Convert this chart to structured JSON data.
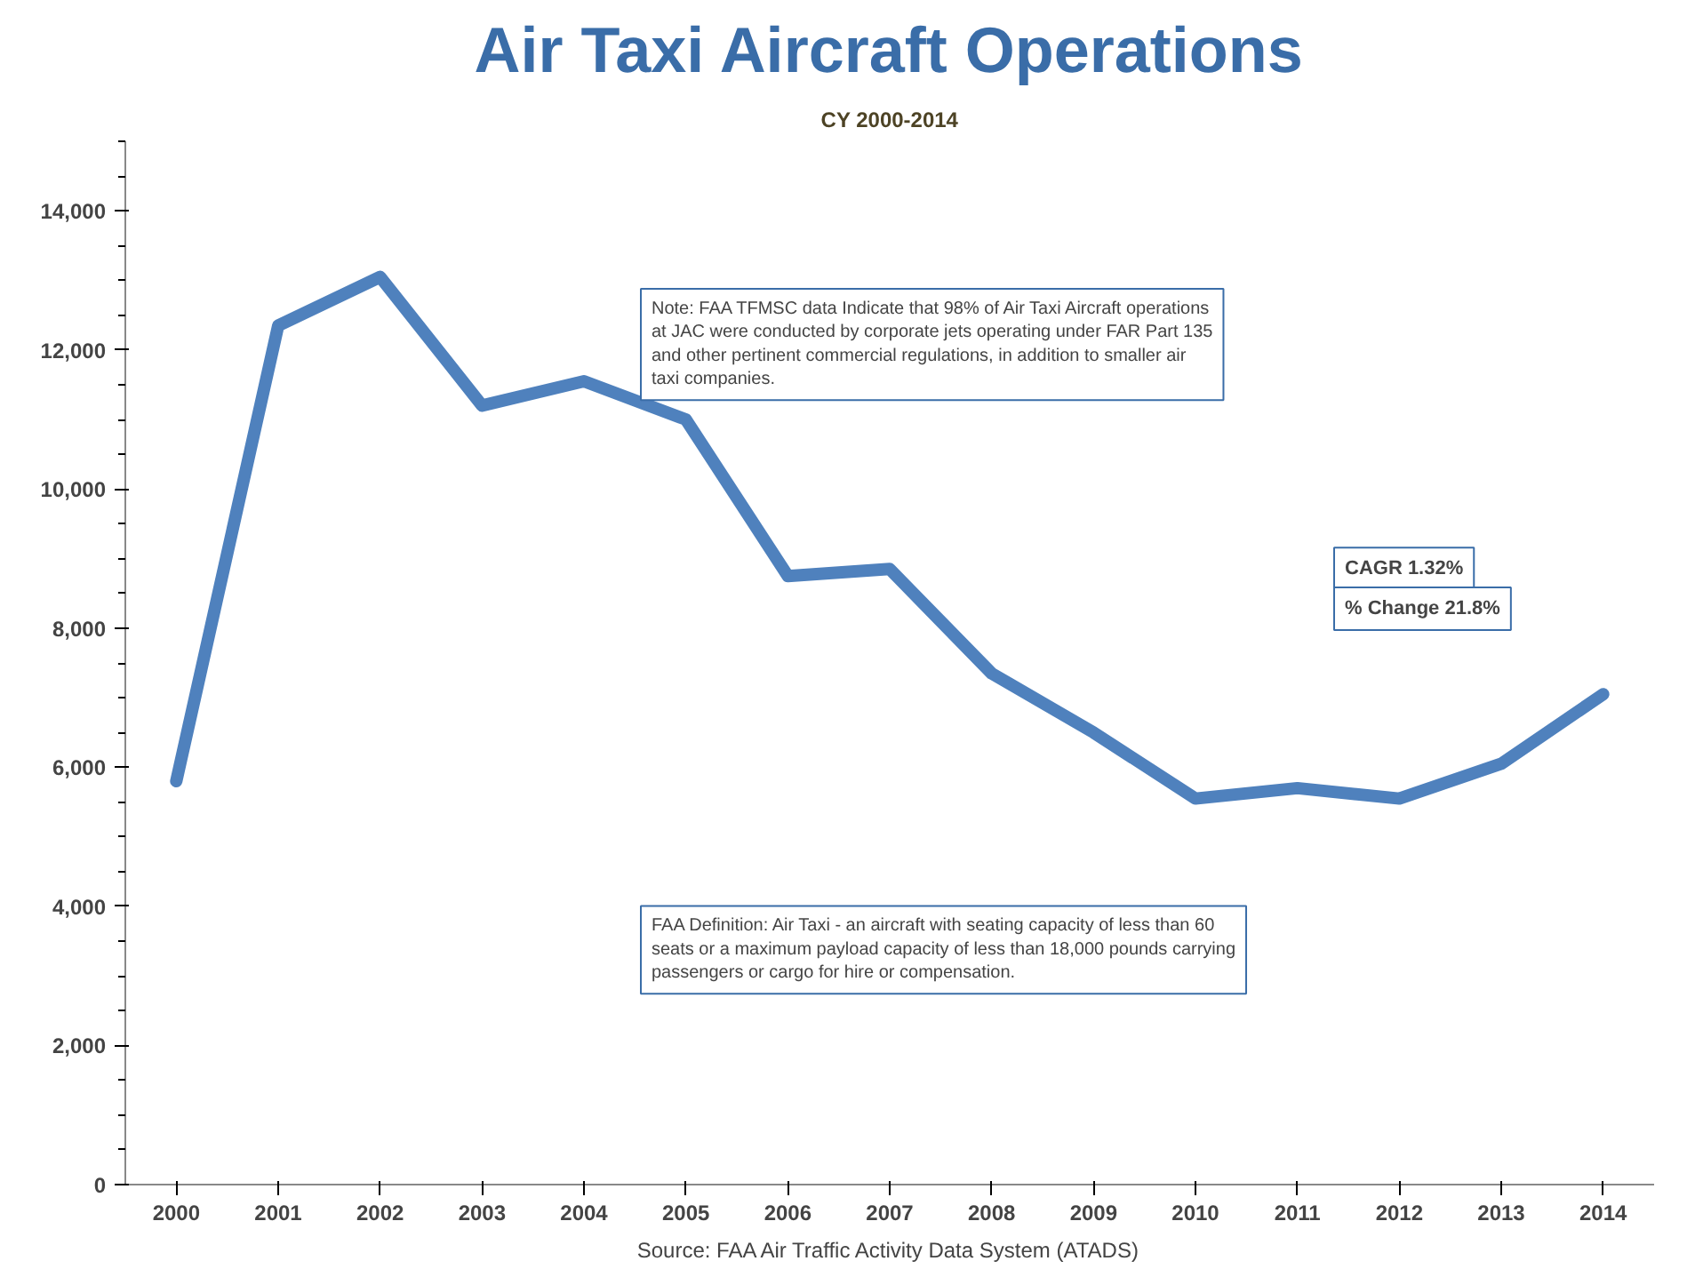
{
  "chart_data": {
    "type": "line",
    "title": "Air Taxi Aircraft Operations",
    "subtitle": "CY 2000-2014",
    "categories": [
      "2000",
      "2001",
      "2002",
      "2003",
      "2004",
      "2005",
      "2006",
      "2007",
      "2008",
      "2009",
      "2010",
      "2011",
      "2012",
      "2013",
      "2014"
    ],
    "series": [
      {
        "color": "#4f81bd",
        "values": [
          5800,
          12350,
          13050,
          11200,
          11550,
          11000,
          8750,
          8850,
          7350,
          6500,
          5550,
          5700,
          5550,
          6050,
          7050
        ]
      }
    ],
    "ylim": [
      0,
      15000
    ],
    "yticks": [
      {
        "value": 0,
        "label": "0"
      },
      {
        "value": 2000,
        "label": "2,000"
      },
      {
        "value": 4000,
        "label": "4,000"
      },
      {
        "value": 6000,
        "label": "6,000"
      },
      {
        "value": 8000,
        "label": "8,000"
      },
      {
        "value": 10000,
        "label": "10,000"
      },
      {
        "value": 12000,
        "label": "12,000"
      },
      {
        "value": 14000,
        "label": "14,000"
      }
    ],
    "grid": false,
    "marker": "none",
    "line_style": "solid",
    "annotations": [
      "Note: FAA TFMSC data Indicate that 98% of Air Taxi Aircraft operations at JAC were conducted by corporate jets operating under FAR Part 135 and other pertinent commercial regulations, in addition to smaller air taxi companies.",
      "CAGR 1.32%",
      "% Change 21.8%",
      "FAA Definition: Air Taxi - an aircraft with seating capacity of less than 60 seats or a maximum payload capacity of less than 18,000 pounds carrying passengers or cargo for hire or compensation.",
      "Source: FAA Air Traffic Activity Data System (ATADS)"
    ]
  }
}
